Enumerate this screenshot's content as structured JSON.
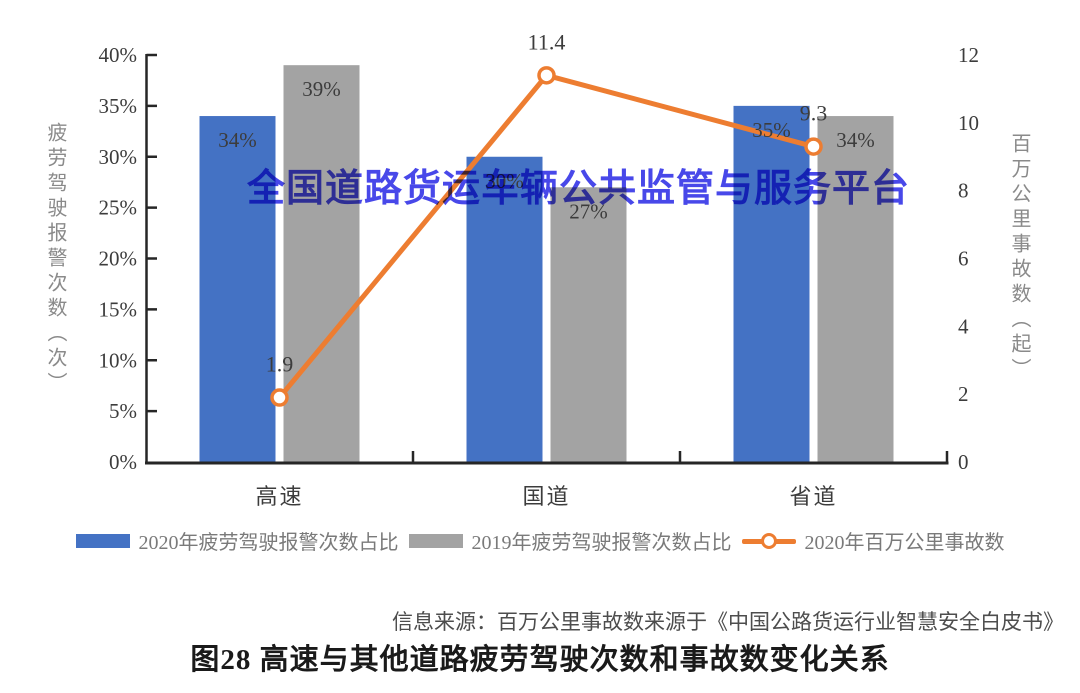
{
  "watermark": {
    "text": "全国道路货运车辆公共监管与服务平台",
    "color": "#3838E8"
  },
  "chart_data": {
    "type": "bar",
    "subtype": "grouped-bars-with-line",
    "categories": [
      "高速",
      "国道",
      "省道"
    ],
    "series": [
      {
        "name": "2020年疲劳驾驶报警次数占比",
        "type": "bar",
        "axis": "left",
        "color": "#4472C4",
        "values": [
          0.34,
          0.3,
          0.35
        ],
        "labels": [
          "34%",
          "30%",
          "35%"
        ]
      },
      {
        "name": "2019年疲劳驾驶报警次数占比",
        "type": "bar",
        "axis": "left",
        "color": "#A3A3A3",
        "values": [
          0.39,
          0.27,
          0.34
        ],
        "labels": [
          "39%",
          "27%",
          "34%"
        ]
      },
      {
        "name": "2020年百万公里事故数",
        "type": "line",
        "axis": "right",
        "color": "#ED7D31",
        "values": [
          1.9,
          11.4,
          9.3
        ],
        "labels": [
          "1.9",
          "11.4",
          "9.3"
        ]
      }
    ],
    "left_axis": {
      "title": "疲劳驾驶报警次数（次）",
      "min": 0,
      "max": 0.4,
      "step": 0.05,
      "tick_labels": [
        "0%",
        "5%",
        "10%",
        "15%",
        "20%",
        "25%",
        "30%",
        "35%",
        "40%"
      ]
    },
    "right_axis": {
      "title": "百万公里事故数（起）",
      "min": 0,
      "max": 12,
      "step": 2,
      "tick_labels": [
        "0",
        "2",
        "4",
        "6",
        "8",
        "10",
        "12"
      ]
    },
    "grid": false,
    "legend_position": "bottom",
    "colors": {
      "axis_line": "#262626",
      "tick_text": "#3c3c3c",
      "data_label": "#3c3c3c",
      "axis_title": "#8a8a8a",
      "legend_text": "#7a7a7a"
    }
  },
  "source_note": "信息来源：百万公里事故数来源于《中国公路货运行业智慧安全白皮书》",
  "caption": "图28 高速与其他道路疲劳驾驶次数和事故数变化关系"
}
